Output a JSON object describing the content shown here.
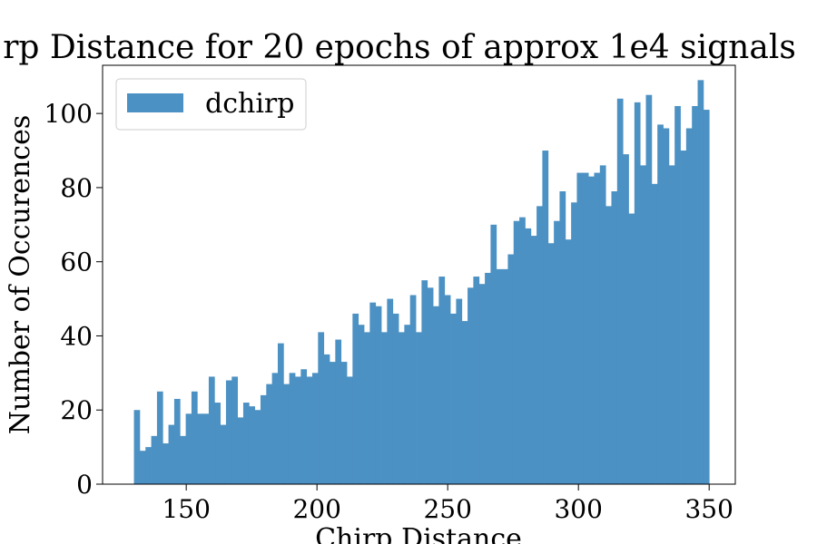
{
  "chart_data": {
    "type": "bar",
    "title": "rp Distance for 20 epochs of approx 1e4 signals",
    "xlabel": "Chirp Distance",
    "ylabel": "Number of Occurences",
    "xlim": [
      118,
      360
    ],
    "ylim": [
      0,
      113
    ],
    "xticks": [
      150,
      200,
      250,
      300,
      350
    ],
    "yticks": [
      0,
      20,
      40,
      60,
      80,
      100
    ],
    "grid": false,
    "legend_position": "top-left",
    "bin_start": 130,
    "bin_end": 350,
    "series": [
      {
        "name": "dchirp",
        "color": "#4c91c3",
        "values": [
          20,
          9,
          10,
          13,
          25,
          11,
          16,
          23,
          13,
          19,
          25,
          19,
          19,
          29,
          22,
          16,
          28,
          29,
          18,
          22,
          21,
          20,
          24,
          27,
          30,
          38,
          27,
          30,
          29,
          31,
          29,
          30,
          41,
          35,
          33,
          39,
          33,
          29,
          46,
          43,
          41,
          49,
          48,
          41,
          50,
          46,
          41,
          43,
          51,
          41,
          55,
          53,
          48,
          56,
          51,
          46,
          50,
          44,
          53,
          56,
          54,
          57,
          70,
          58,
          58,
          62,
          71,
          72,
          69,
          67,
          75,
          90,
          65,
          71,
          79,
          66,
          76,
          84,
          84,
          83,
          84,
          86,
          75,
          79,
          104,
          89,
          73,
          103,
          86,
          105,
          81,
          97,
          96,
          86,
          102,
          90,
          96,
          102,
          109,
          101
        ]
      }
    ]
  }
}
